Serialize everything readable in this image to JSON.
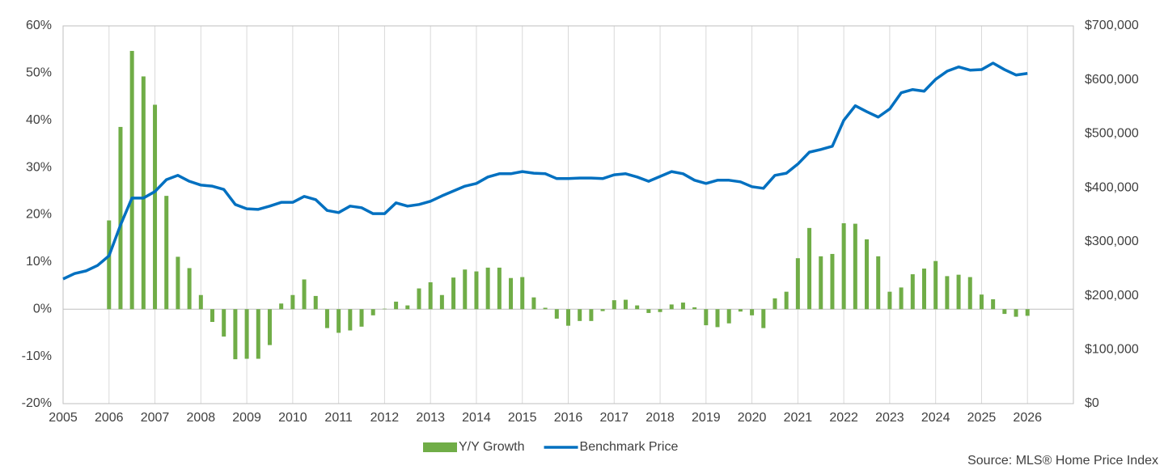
{
  "chart_data": {
    "type": "bar-line",
    "xlim": [
      2005,
      2027
    ],
    "xticks": [
      2005,
      2006,
      2007,
      2008,
      2009,
      2010,
      2011,
      2012,
      2013,
      2014,
      2015,
      2016,
      2017,
      2018,
      2019,
      2020,
      2021,
      2022,
      2023,
      2024,
      2025,
      2026
    ],
    "ylim": [
      -20,
      60
    ],
    "yticks": [
      {
        "value": -20,
        "label": "-20%"
      },
      {
        "value": -10,
        "label": "-10%"
      },
      {
        "value": 0,
        "label": "0%"
      },
      {
        "value": 10,
        "label": "10%"
      },
      {
        "value": 20,
        "label": "20%"
      },
      {
        "value": 30,
        "label": "30%"
      },
      {
        "value": 40,
        "label": "40%"
      },
      {
        "value": 50,
        "label": "50%"
      },
      {
        "value": 60,
        "label": "60%"
      }
    ],
    "y2lim": [
      0,
      700000
    ],
    "y2ticks": [
      {
        "value": 0,
        "label": "$0"
      },
      {
        "value": 100000,
        "label": "$100,000"
      },
      {
        "value": 200000,
        "label": "$200,000"
      },
      {
        "value": 300000,
        "label": "$300,000"
      },
      {
        "value": 400000,
        "label": "$400,000"
      },
      {
        "value": 500000,
        "label": "$500,000"
      },
      {
        "value": 600000,
        "label": "$600,000"
      },
      {
        "value": 700000,
        "label": "$700,000"
      }
    ],
    "grid": true,
    "legend": "bottom",
    "source": "Source: MLS® Home Price Index",
    "series": [
      {
        "name": "Y/Y Growth",
        "type": "bar",
        "color": "#70ad47",
        "x": [
          2006,
          2006.25,
          2006.5,
          2006.75,
          2007,
          2007.25,
          2007.5,
          2007.75,
          2008,
          2008.25,
          2008.5,
          2008.75,
          2009,
          2009.25,
          2009.5,
          2009.75,
          2010,
          2010.25,
          2010.5,
          2010.75,
          2011,
          2011.25,
          2011.5,
          2011.75,
          2012,
          2012.25,
          2012.5,
          2012.75,
          2013,
          2013.25,
          2013.5,
          2013.75,
          2014,
          2014.25,
          2014.5,
          2014.75,
          2015,
          2015.25,
          2015.5,
          2015.75,
          2016,
          2016.25,
          2016.5,
          2016.75,
          2017,
          2017.25,
          2017.5,
          2017.75,
          2018,
          2018.25,
          2018.5,
          2018.75,
          2019,
          2019.25,
          2019.5,
          2019.75,
          2020,
          2020.25,
          2020.5,
          2020.75,
          2021,
          2021.25,
          2021.5,
          2021.75,
          2022,
          2022.25,
          2022.5,
          2022.75,
          2023,
          2023.25,
          2023.5,
          2023.75,
          2024,
          2024.25,
          2024.5,
          2024.75,
          2025,
          2025.25,
          2025.5,
          2025.75,
          2026
        ],
        "values": [
          18.8,
          38.6,
          54.7,
          49.3,
          43.3,
          24.0,
          11.1,
          8.7,
          3.0,
          -2.7,
          -5.8,
          -10.6,
          -10.5,
          -10.5,
          -7.6,
          1.2,
          3.0,
          6.3,
          2.8,
          -4.0,
          -5.0,
          -4.5,
          -3.7,
          -1.3,
          0.1,
          1.6,
          0.8,
          4.4,
          5.7,
          3.0,
          6.7,
          8.4,
          8.0,
          8.8,
          8.8,
          6.6,
          6.8,
          2.5,
          0.3,
          -2.0,
          -3.5,
          -2.5,
          -2.5,
          -0.4,
          1.9,
          2.0,
          0.8,
          -0.8,
          -0.6,
          1.0,
          1.4,
          0.4,
          -3.4,
          -3.8,
          -3.0,
          -0.5,
          -1.3,
          -4.0,
          2.3,
          3.7,
          10.8,
          17.2,
          11.2,
          11.7,
          18.2,
          18.1,
          14.8,
          11.2,
          3.7,
          4.6,
          7.4,
          8.6,
          10.2,
          7.0,
          7.3,
          6.8,
          3.1,
          2.1,
          -1.0,
          -1.6,
          -1.4
        ]
      },
      {
        "name": "Benchmark Price",
        "type": "line",
        "color": "#0070c0",
        "axis": "y2",
        "x": [
          2005,
          2005.25,
          2005.5,
          2005.75,
          2006,
          2006.25,
          2006.5,
          2006.75,
          2007,
          2007.25,
          2007.5,
          2007.75,
          2008,
          2008.25,
          2008.5,
          2008.75,
          2009,
          2009.25,
          2009.5,
          2009.75,
          2010,
          2010.25,
          2010.5,
          2010.75,
          2011,
          2011.25,
          2011.5,
          2011.75,
          2012,
          2012.25,
          2012.5,
          2012.75,
          2013,
          2013.25,
          2013.5,
          2013.75,
          2014,
          2014.25,
          2014.5,
          2014.75,
          2015,
          2015.25,
          2015.5,
          2015.75,
          2016,
          2016.25,
          2016.5,
          2016.75,
          2017,
          2017.25,
          2017.5,
          2017.75,
          2018,
          2018.25,
          2018.5,
          2018.75,
          2019,
          2019.25,
          2019.5,
          2019.75,
          2020,
          2020.25,
          2020.5,
          2020.75,
          2021,
          2021.25,
          2021.5,
          2021.75,
          2022,
          2022.25,
          2022.5,
          2022.75,
          2023,
          2023.25,
          2023.5,
          2023.75,
          2024,
          2024.25,
          2024.5,
          2024.75,
          2025,
          2025.25,
          2025.5,
          2025.75,
          2026
        ],
        "values": [
          231000,
          241000,
          246000,
          256000,
          274000,
          331000,
          381000,
          381000,
          393000,
          415000,
          423000,
          412000,
          405000,
          403000,
          397000,
          369000,
          361000,
          360000,
          366000,
          373000,
          373000,
          384000,
          378000,
          358000,
          354000,
          366000,
          363000,
          352000,
          352000,
          372000,
          366000,
          369000,
          375000,
          385000,
          394000,
          403000,
          408000,
          420000,
          426000,
          426000,
          430000,
          427000,
          426000,
          417000,
          417000,
          418000,
          418000,
          417000,
          424000,
          426000,
          420000,
          412000,
          421000,
          430000,
          426000,
          414000,
          408000,
          414000,
          414000,
          411000,
          402000,
          399000,
          423000,
          427000,
          444000,
          466000,
          471000,
          477000,
          525000,
          552000,
          541000,
          531000,
          546000,
          576000,
          582000,
          579000,
          601000,
          616000,
          624000,
          618000,
          619000,
          631000,
          619000,
          609000,
          612000
        ]
      }
    ]
  }
}
